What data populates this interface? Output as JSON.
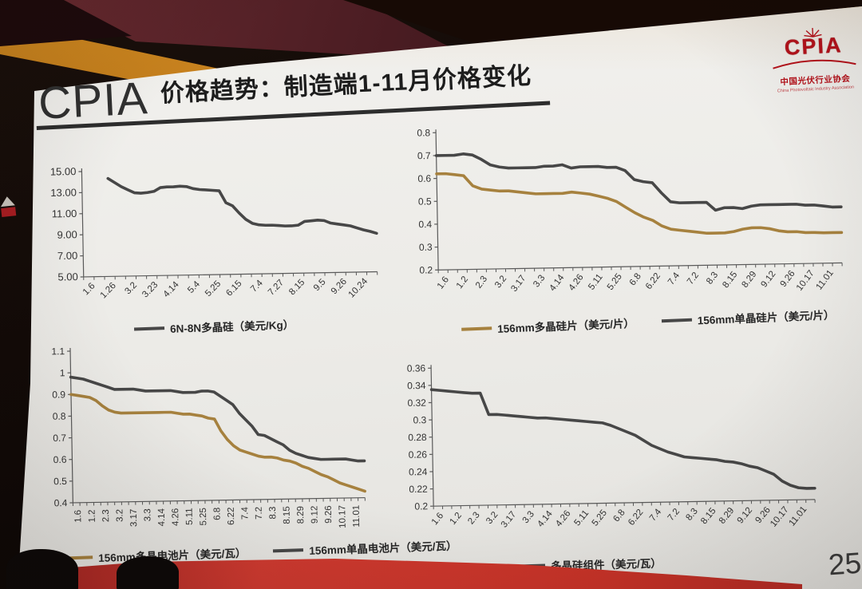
{
  "scene": {
    "page_number": "25"
  },
  "slide": {
    "brand": "CPIA",
    "title": "价格趋势：制造端1-11月价格变化",
    "logo": {
      "word": "CPIA",
      "cn": "中国光伏行业协会",
      "en": "China Photovoltaic Industry Association"
    }
  },
  "colors": {
    "line_dark": "#474747",
    "line_gold": "#a6813e",
    "axis": "#5a5a5a",
    "logo_red": "#b5121b",
    "carpet_red": "#c93328"
  },
  "chart_data": [
    {
      "type": "line",
      "title": "",
      "ylim": [
        5,
        15
      ],
      "ytick_values": [
        5,
        7,
        9,
        11,
        13,
        15
      ],
      "ytick_labels": [
        "5.00",
        "7.00",
        "9.00",
        "11.00",
        "13.00",
        "15.00"
      ],
      "categories": [
        "1.6",
        "1.26",
        "3.2",
        "3.23",
        "4.14",
        "5.4",
        "5.25",
        "6.15",
        "7.4",
        "7.27",
        "8.15",
        "9.5",
        "9.26",
        "10.24"
      ],
      "legend_position": "bottom",
      "series": [
        {
          "name": "6N-8N多晶硅（美元/Kg）",
          "color": "#474747",
          "values": [
            null,
            null,
            null,
            null,
            14.3,
            13.9,
            13.5,
            13.2,
            12.9,
            12.85,
            12.9,
            13.0,
            13.35,
            13.4,
            13.4,
            13.45,
            13.4,
            13.2,
            13.1,
            13.05,
            13.0,
            12.95,
            11.8,
            11.5,
            10.8,
            10.2,
            9.8,
            9.65,
            9.6,
            9.6,
            9.55,
            9.5,
            9.5,
            9.55,
            9.9,
            9.95,
            10.0,
            9.95,
            9.7,
            9.6,
            9.5,
            9.4,
            9.2,
            9.0,
            8.85,
            8.65
          ]
        }
      ]
    },
    {
      "type": "line",
      "title": "",
      "ylim": [
        0.2,
        0.8
      ],
      "ytick_values": [
        0.2,
        0.3,
        0.4,
        0.5,
        0.6,
        0.7,
        0.8
      ],
      "ytick_labels": [
        "0.2",
        "0.3",
        "0.4",
        "0.5",
        "0.6",
        "0.7",
        "0.8"
      ],
      "categories": [
        "1.6",
        "1.2",
        "2.3",
        "3.2",
        "3.17",
        "3.3",
        "4.14",
        "4.26",
        "5.11",
        "5.25",
        "6.8",
        "6.22",
        "7.4",
        "7.2",
        "8.3",
        "8.15",
        "8.29",
        "9.12",
        "9.26",
        "10.17",
        "11.01"
      ],
      "legend_position": "bottom",
      "series": [
        {
          "name": "156mm多晶硅片（美元/片）",
          "color": "#a6813e",
          "values": [
            0.62,
            0.62,
            0.615,
            0.61,
            0.565,
            0.55,
            0.545,
            0.54,
            0.54,
            0.535,
            0.53,
            0.525,
            0.525,
            0.525,
            0.525,
            0.53,
            0.525,
            0.52,
            0.51,
            0.5,
            0.485,
            0.46,
            0.435,
            0.415,
            0.4,
            0.375,
            0.36,
            0.355,
            0.35,
            0.345,
            0.34,
            0.34,
            0.34,
            0.345,
            0.355,
            0.36,
            0.36,
            0.355,
            0.345,
            0.34,
            0.34,
            0.335,
            0.335,
            0.333,
            0.333,
            0.333
          ]
        },
        {
          "name": "156mm单晶硅片（美元/片）",
          "color": "#474747",
          "values": [
            0.7,
            0.7,
            0.7,
            0.705,
            0.7,
            0.68,
            0.655,
            0.645,
            0.64,
            0.64,
            0.64,
            0.64,
            0.645,
            0.645,
            0.65,
            0.635,
            0.64,
            0.64,
            0.64,
            0.635,
            0.635,
            0.62,
            0.58,
            0.57,
            0.565,
            0.52,
            0.48,
            0.475,
            0.475,
            0.475,
            0.475,
            0.44,
            0.45,
            0.45,
            0.445,
            0.455,
            0.46,
            0.46,
            0.46,
            0.46,
            0.46,
            0.455,
            0.455,
            0.45,
            0.445,
            0.445
          ]
        }
      ]
    },
    {
      "type": "line",
      "title": "",
      "ylim": [
        0.4,
        1.1
      ],
      "ytick_values": [
        0.4,
        0.5,
        0.6,
        0.7,
        0.8,
        0.9,
        1,
        1.1
      ],
      "ytick_labels": [
        "0.4",
        "0.5",
        "0.6",
        "0.7",
        "0.8",
        "0.9",
        "1",
        "1.1"
      ],
      "categories": [
        "1.6",
        "1.2",
        "2.3",
        "3.2",
        "3.17",
        "3.3",
        "4.14",
        "4.26",
        "5.11",
        "5.25",
        "6.8",
        "6.22",
        "7.4",
        "7.2",
        "8.3",
        "8.15",
        "8.29",
        "9.12",
        "9.26",
        "10.17",
        "11.01"
      ],
      "legend_position": "bottom",
      "series": [
        {
          "name": "156mm多晶电池片（美元/瓦）",
          "color": "#a6813e",
          "values": [
            0.9,
            0.895,
            0.89,
            0.885,
            0.87,
            0.845,
            0.825,
            0.815,
            0.81,
            0.81,
            0.81,
            0.81,
            0.81,
            0.81,
            0.81,
            0.81,
            0.81,
            0.805,
            0.8,
            0.8,
            0.795,
            0.79,
            0.78,
            0.775,
            0.72,
            0.68,
            0.65,
            0.63,
            0.62,
            0.61,
            0.6,
            0.595,
            0.595,
            0.59,
            0.58,
            0.575,
            0.565,
            0.55,
            0.54,
            0.525,
            0.51,
            0.5,
            0.485,
            0.47,
            0.46,
            0.45,
            0.44,
            0.43
          ]
        },
        {
          "name": "156mm单晶电池片（美元/瓦）",
          "color": "#474747",
          "values": [
            0.98,
            0.975,
            0.97,
            0.96,
            0.95,
            0.94,
            0.93,
            0.92,
            0.92,
            0.92,
            0.92,
            0.915,
            0.91,
            0.91,
            0.91,
            0.91,
            0.91,
            0.905,
            0.9,
            0.9,
            0.9,
            0.905,
            0.905,
            0.9,
            0.88,
            0.86,
            0.84,
            0.8,
            0.77,
            0.74,
            0.7,
            0.695,
            0.68,
            0.665,
            0.65,
            0.625,
            0.61,
            0.6,
            0.59,
            0.585,
            0.58,
            0.58,
            0.58,
            0.58,
            0.58,
            0.575,
            0.57,
            0.57
          ]
        }
      ]
    },
    {
      "type": "line",
      "title": "",
      "ylim": [
        0.2,
        0.36
      ],
      "ytick_values": [
        0.2,
        0.22,
        0.24,
        0.26,
        0.28,
        0.3,
        0.32,
        0.34,
        0.36
      ],
      "ytick_labels": [
        "0.2",
        "0.22",
        "0.24",
        "0.26",
        "0.28",
        "0.3",
        "0.32",
        "0.34",
        "0.36"
      ],
      "categories": [
        "1.6",
        "1.2",
        "2.3",
        "3.2",
        "3.17",
        "3.3",
        "4.14",
        "4.26",
        "5.11",
        "5.25",
        "6.8",
        "6.22",
        "7.4",
        "7.2",
        "8.3",
        "8.15",
        "8.29",
        "9.12",
        "9.26",
        "10.17",
        "11.01"
      ],
      "legend_position": "bottom",
      "series": [
        {
          "name": "多晶硅组件（美元/瓦）",
          "color": "#474747",
          "values": [
            0.335,
            0.334,
            0.333,
            0.332,
            0.331,
            0.33,
            0.33,
            0.305,
            0.305,
            0.304,
            0.303,
            0.302,
            0.301,
            0.3,
            0.3,
            0.299,
            0.298,
            0.297,
            0.296,
            0.295,
            0.294,
            0.293,
            0.29,
            0.286,
            0.282,
            0.278,
            0.272,
            0.266,
            0.262,
            0.258,
            0.255,
            0.252,
            0.251,
            0.25,
            0.249,
            0.248,
            0.246,
            0.245,
            0.243,
            0.24,
            0.238,
            0.234,
            0.23,
            0.222,
            0.217,
            0.214,
            0.213,
            0.213
          ]
        }
      ]
    }
  ]
}
